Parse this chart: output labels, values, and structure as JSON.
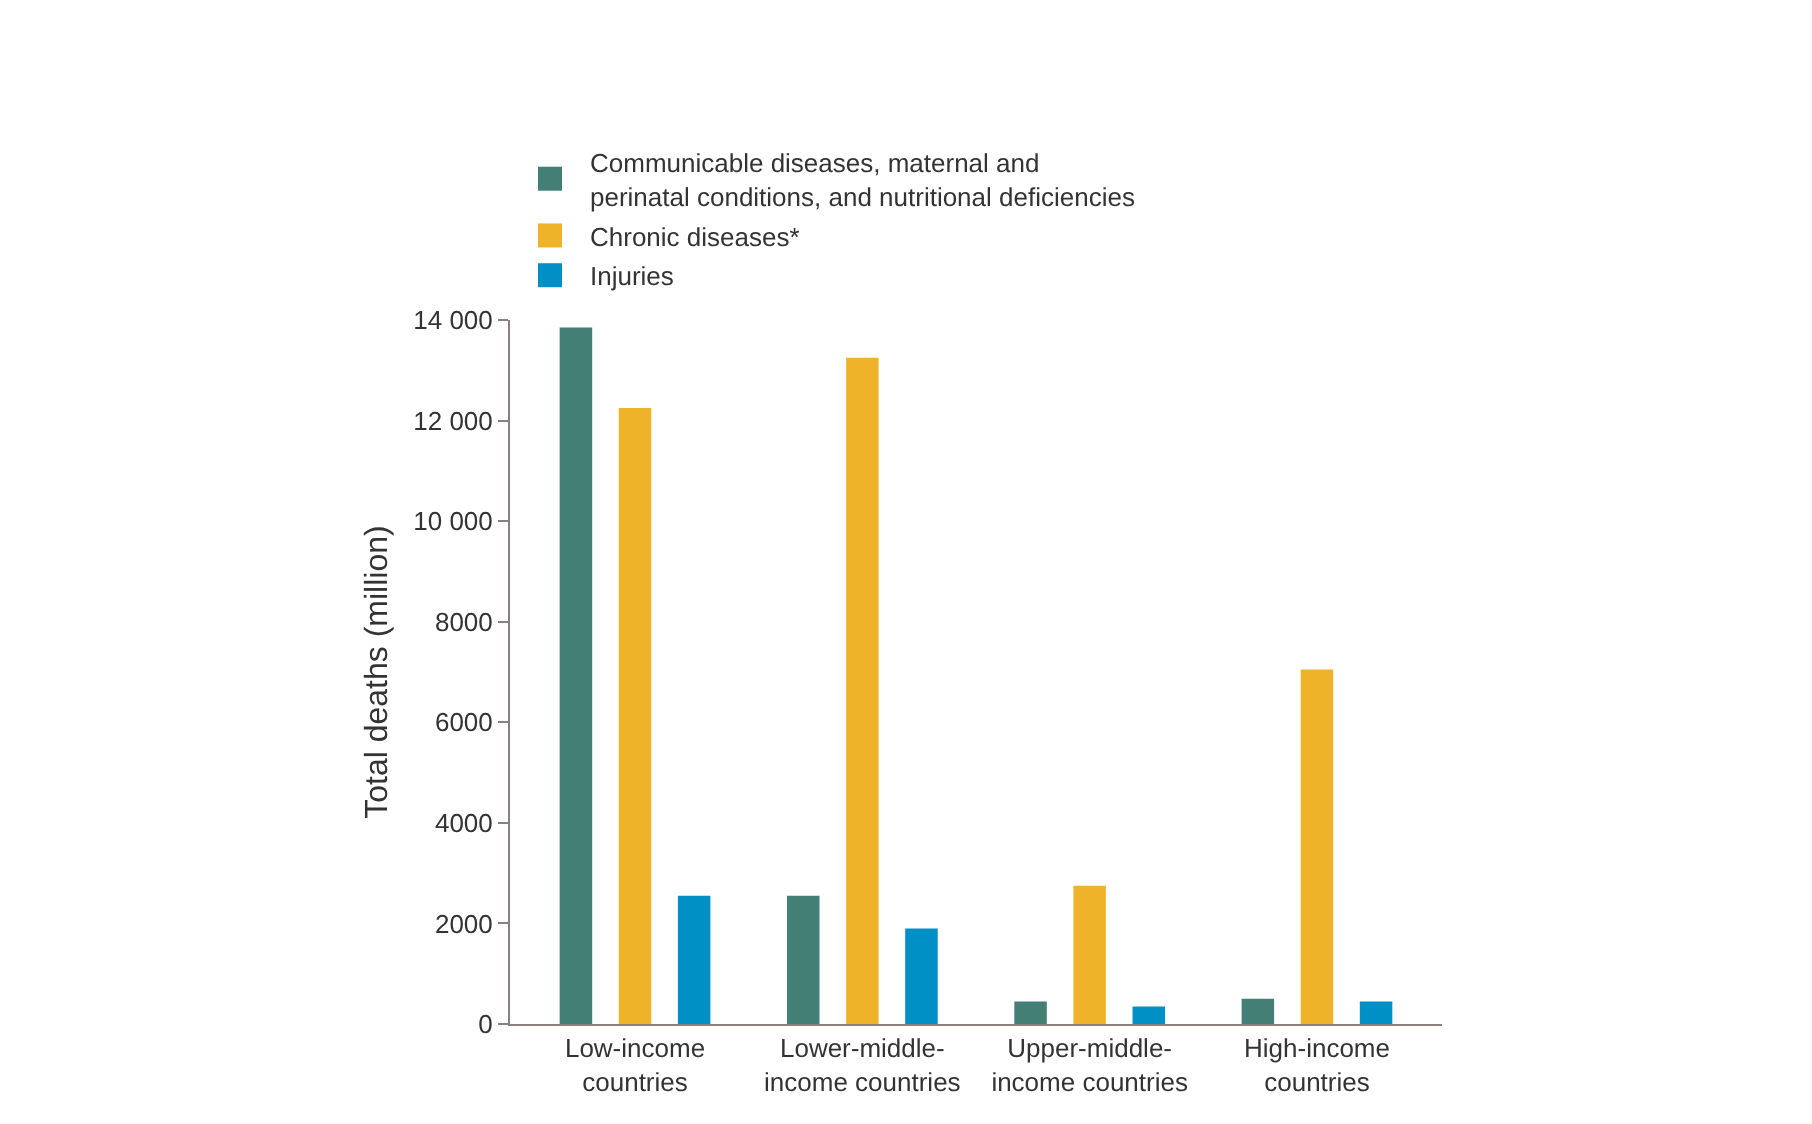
{
  "chart_data": {
    "type": "bar",
    "ylabel": "Total deaths (million)",
    "categories": [
      "Low-income\ncountries",
      "Lower-middle-\nincome countries",
      "Upper-middle-\nincome countries",
      "High-income\ncountries"
    ],
    "series": [
      {
        "name": "Communicable diseases, maternal and\nperinatal conditions, and nutritional deficiencies",
        "color": "#437f74",
        "values": [
          13850,
          2550,
          450,
          500
        ]
      },
      {
        "name": "Chronic diseases*",
        "color": "#efb32a",
        "values": [
          12250,
          13250,
          2750,
          7050
        ]
      },
      {
        "name": "Injuries",
        "color": "#0090c6",
        "values": [
          2550,
          1900,
          350,
          450
        ]
      }
    ],
    "ylim": [
      0,
      14000
    ],
    "yticks": [
      0,
      2000,
      4000,
      6000,
      8000,
      {
        "value": 10000,
        "label": "10 000"
      },
      {
        "value": 12000,
        "label": "12 000"
      },
      {
        "value": 14000,
        "label": "14 000"
      }
    ],
    "legend": "top"
  }
}
